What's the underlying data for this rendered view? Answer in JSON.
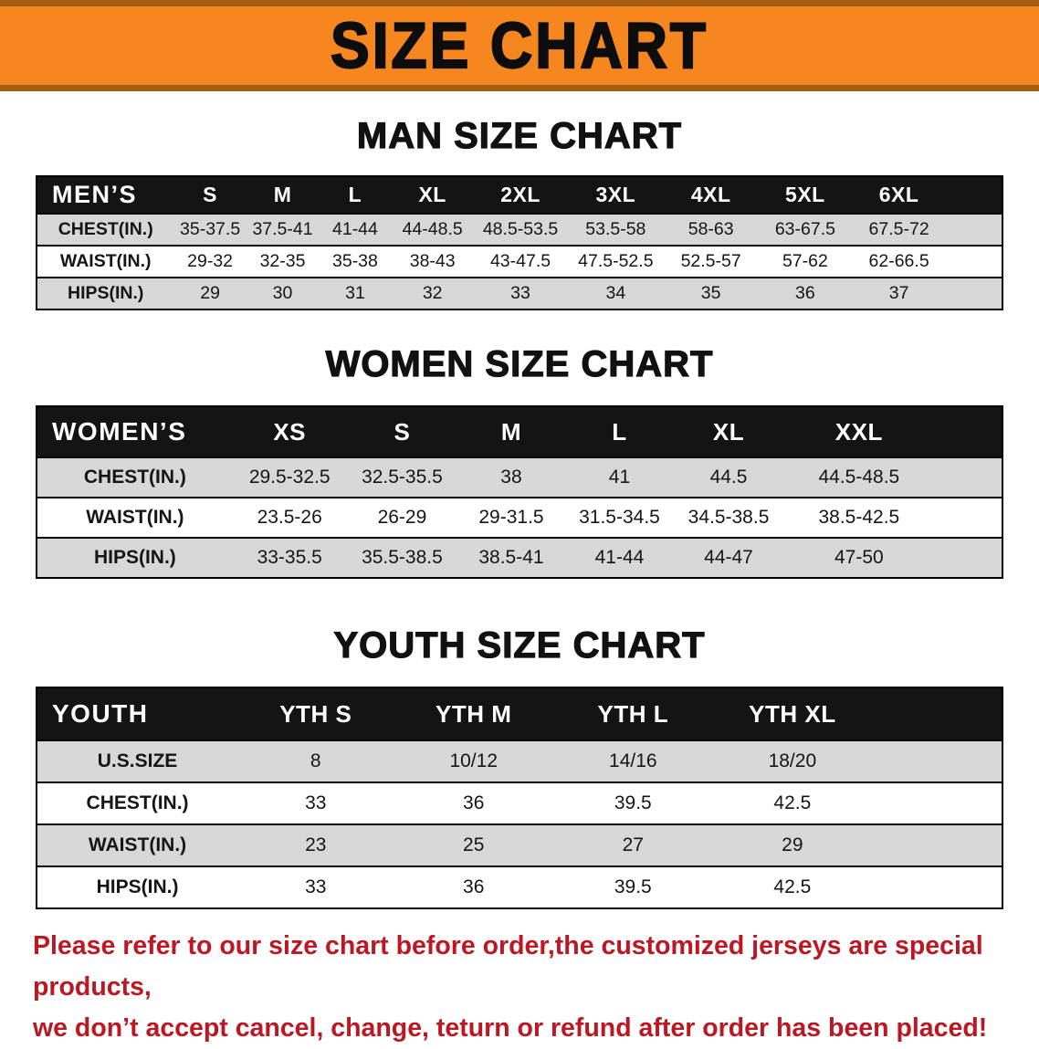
{
  "banner": {
    "title": "SIZE CHART"
  },
  "colors": {
    "banner_bg": "#f6861f",
    "banner_edge": "#a35c12",
    "header_bg": "#141414",
    "header_text": "#ffffff",
    "row_gray": "#d7d7d7",
    "row_white": "#ffffff",
    "text": "#141414",
    "disclaimer": "#bc1823"
  },
  "sections": [
    {
      "id": "men",
      "heading": "MAN SIZE CHART",
      "corner_label": "MEN’S",
      "columns": [
        "S",
        "M",
        "L",
        "XL",
        "2XL",
        "3XL",
        "4XL",
        "5XL",
        "6XL"
      ],
      "rows": [
        {
          "label": "CHEST(IN.)",
          "values": [
            "35-37.5",
            "37.5-41",
            "41-44",
            "44-48.5",
            "48.5-53.5",
            "53.5-58",
            "58-63",
            "63-67.5",
            "67.5-72"
          ]
        },
        {
          "label": "WAIST(IN.)",
          "values": [
            "29-32",
            "32-35",
            "35-38",
            "38-43",
            "43-47.5",
            "47.5-52.5",
            "52.5-57",
            "57-62",
            "62-66.5"
          ]
        },
        {
          "label": "HIPS(IN.)",
          "values": [
            "29",
            "30",
            "31",
            "32",
            "33",
            "34",
            "35",
            "36",
            "37"
          ]
        }
      ]
    },
    {
      "id": "women",
      "heading": "WOMEN SIZE CHART",
      "corner_label": "WOMEN’S",
      "columns": [
        "XS",
        "S",
        "M",
        "L",
        "XL",
        "XXL"
      ],
      "rows": [
        {
          "label": "CHEST(IN.)",
          "values": [
            "29.5-32.5",
            "32.5-35.5",
            "38",
            "41",
            "44.5",
            "44.5-48.5"
          ]
        },
        {
          "label": "WAIST(IN.)",
          "values": [
            "23.5-26",
            "26-29",
            "29-31.5",
            "31.5-34.5",
            "34.5-38.5",
            "38.5-42.5"
          ]
        },
        {
          "label": "HIPS(IN.)",
          "values": [
            "33-35.5",
            "35.5-38.5",
            "38.5-41",
            "41-44",
            "44-47",
            "47-50"
          ]
        }
      ]
    },
    {
      "id": "youth",
      "heading": "YOUTH SIZE CHART",
      "corner_label": "YOUTH",
      "columns": [
        "YTH S",
        "YTH M",
        "YTH L",
        "YTH XL"
      ],
      "rows": [
        {
          "label": "U.S.SIZE",
          "values": [
            "8",
            "10/12",
            "14/16",
            "18/20"
          ]
        },
        {
          "label": "CHEST(IN.)",
          "values": [
            "33",
            "36",
            "39.5",
            "42.5"
          ]
        },
        {
          "label": "WAIST(IN.)",
          "values": [
            "23",
            "25",
            "27",
            "29"
          ]
        },
        {
          "label": "HIPS(IN.)",
          "values": [
            "33",
            "36",
            "39.5",
            "42.5"
          ]
        }
      ]
    }
  ],
  "disclaimer": {
    "lines": [
      "Please refer to our size chart before order,the customized jerseys are special products,",
      "we don’t accept cancel, change, teturn or refund after order has been placed!"
    ]
  }
}
